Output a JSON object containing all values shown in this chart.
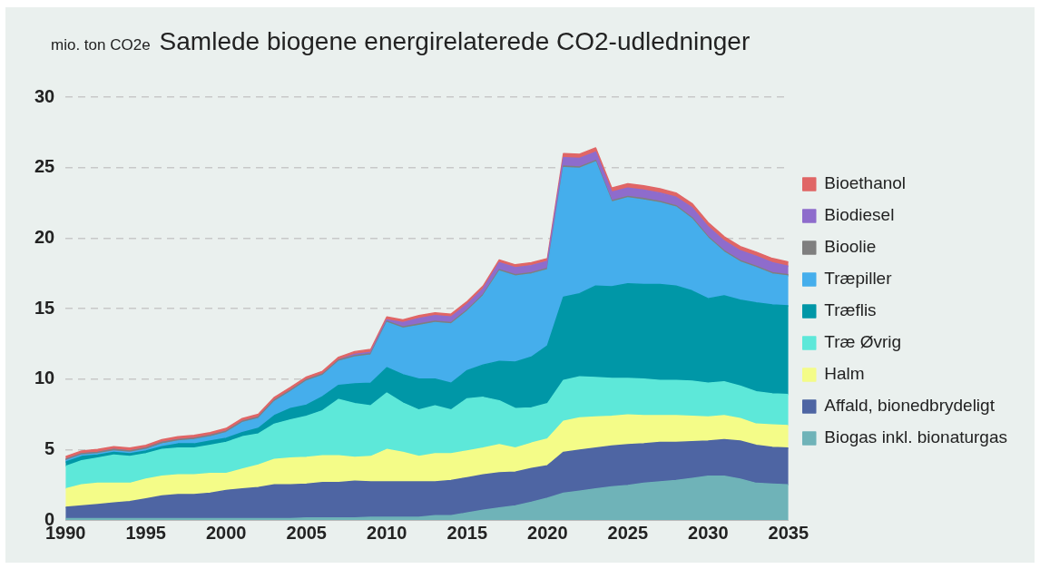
{
  "chart_data": {
    "type": "area",
    "stacked": true,
    "title": "Samlede biogene energirelaterede CO2-udledninger",
    "ylabel": "mio. ton CO2e",
    "x": [
      1990,
      1991,
      1992,
      1993,
      1994,
      1995,
      1996,
      1997,
      1998,
      1999,
      2000,
      2001,
      2002,
      2003,
      2004,
      2005,
      2006,
      2007,
      2008,
      2009,
      2010,
      2011,
      2012,
      2013,
      2014,
      2015,
      2016,
      2017,
      2018,
      2019,
      2020,
      2021,
      2022,
      2023,
      2024,
      2025,
      2026,
      2027,
      2028,
      2029,
      2030,
      2031,
      2032,
      2033,
      2034,
      2035
    ],
    "xlim": [
      1990,
      2035
    ],
    "xticks": [
      1990,
      1995,
      2000,
      2005,
      2010,
      2015,
      2020,
      2025,
      2030,
      2035
    ],
    "ylim": [
      0,
      30
    ],
    "yticks": [
      0,
      5,
      10,
      15,
      20,
      25,
      30
    ],
    "grid": "y",
    "legend": "right",
    "series": [
      {
        "name": "Biogas inkl. bionaturgas",
        "color": "#6fb3b8",
        "values": [
          0.1,
          0.1,
          0.1,
          0.1,
          0.1,
          0.1,
          0.1,
          0.1,
          0.1,
          0.1,
          0.1,
          0.1,
          0.1,
          0.1,
          0.1,
          0.15,
          0.15,
          0.15,
          0.15,
          0.2,
          0.2,
          0.2,
          0.2,
          0.3,
          0.3,
          0.5,
          0.7,
          0.85,
          1.0,
          1.25,
          1.55,
          1.9,
          2.05,
          2.2,
          2.35,
          2.45,
          2.6,
          2.7,
          2.8,
          2.95,
          3.1,
          3.1,
          2.9,
          2.6,
          2.55,
          2.5
        ]
      },
      {
        "name": "Affald, bionedbrydeligt",
        "color": "#4e65a3",
        "values": [
          0.8,
          0.9,
          1.0,
          1.1,
          1.2,
          1.4,
          1.6,
          1.7,
          1.7,
          1.8,
          2.0,
          2.1,
          2.2,
          2.4,
          2.4,
          2.4,
          2.5,
          2.5,
          2.6,
          2.5,
          2.5,
          2.5,
          2.5,
          2.4,
          2.5,
          2.5,
          2.5,
          2.5,
          2.4,
          2.4,
          2.3,
          2.9,
          2.9,
          2.9,
          2.9,
          2.9,
          2.8,
          2.8,
          2.7,
          2.6,
          2.5,
          2.6,
          2.7,
          2.7,
          2.6,
          2.6
        ]
      },
      {
        "name": "Halm",
        "color": "#f4fc88",
        "values": [
          1.3,
          1.5,
          1.5,
          1.4,
          1.3,
          1.4,
          1.4,
          1.4,
          1.4,
          1.4,
          1.2,
          1.4,
          1.6,
          1.8,
          1.9,
          1.9,
          1.9,
          1.9,
          1.7,
          1.8,
          2.3,
          2.1,
          1.8,
          2.0,
          1.9,
          1.9,
          1.9,
          2.0,
          1.7,
          1.8,
          1.9,
          2.2,
          2.3,
          2.2,
          2.1,
          2.1,
          2.0,
          1.9,
          1.9,
          1.8,
          1.7,
          1.7,
          1.6,
          1.5,
          1.6,
          1.6
        ]
      },
      {
        "name": "Træ Øvrig",
        "color": "#5de8d9",
        "values": [
          1.6,
          1.7,
          1.8,
          2.0,
          1.9,
          1.8,
          1.9,
          1.9,
          1.9,
          2.0,
          2.2,
          2.3,
          2.2,
          2.5,
          2.7,
          2.9,
          3.2,
          4.0,
          3.8,
          3.6,
          4.0,
          3.5,
          3.3,
          3.4,
          3.1,
          3.7,
          3.6,
          3.1,
          2.8,
          2.5,
          2.5,
          2.9,
          2.9,
          2.8,
          2.7,
          2.6,
          2.6,
          2.5,
          2.5,
          2.5,
          2.4,
          2.4,
          2.3,
          2.3,
          2.2,
          2.2
        ]
      },
      {
        "name": "Træflis",
        "color": "#0097a7",
        "values": [
          0.3,
          0.3,
          0.2,
          0.2,
          0.2,
          0.2,
          0.2,
          0.3,
          0.3,
          0.3,
          0.3,
          0.3,
          0.4,
          0.6,
          0.8,
          0.8,
          1.0,
          1.0,
          1.4,
          1.6,
          1.8,
          2.0,
          2.2,
          1.9,
          1.9,
          2.0,
          2.3,
          2.8,
          3.3,
          3.6,
          4.1,
          5.9,
          5.9,
          6.5,
          6.5,
          6.7,
          6.7,
          6.8,
          6.7,
          6.4,
          6.0,
          6.1,
          6.1,
          6.3,
          6.3,
          6.3
        ]
      },
      {
        "name": "Træpiller",
        "color": "#45aeec",
        "values": [
          0.1,
          0.1,
          0.1,
          0.1,
          0.1,
          0.1,
          0.2,
          0.2,
          0.3,
          0.3,
          0.4,
          0.7,
          0.7,
          1.0,
          1.2,
          1.7,
          1.5,
          1.7,
          1.9,
          2.0,
          3.2,
          3.3,
          3.8,
          4.0,
          4.2,
          4.2,
          4.9,
          6.4,
          6.1,
          5.9,
          5.4,
          9.2,
          8.9,
          8.8,
          6.0,
          6.1,
          6.0,
          5.8,
          5.6,
          5.1,
          4.3,
          3.1,
          2.7,
          2.5,
          2.2,
          2.1
        ]
      },
      {
        "name": "Bioolie",
        "color": "#7f7f7f",
        "values": [
          0.1,
          0.1,
          0.1,
          0.1,
          0.1,
          0.1,
          0.1,
          0.1,
          0.1,
          0.1,
          0.1,
          0.1,
          0.1,
          0.1,
          0.1,
          0.1,
          0.1,
          0.1,
          0.1,
          0.1,
          0.1,
          0.1,
          0.1,
          0.1,
          0.1,
          0.1,
          0.1,
          0.1,
          0.1,
          0.1,
          0.1,
          0.1,
          0.1,
          0.1,
          0.1,
          0.1,
          0.1,
          0.1,
          0.1,
          0.1,
          0.1,
          0.1,
          0.1,
          0.1,
          0.1,
          0.1
        ]
      },
      {
        "name": "Biodiesel",
        "color": "#8e6ccc",
        "values": [
          0,
          0,
          0,
          0,
          0,
          0,
          0,
          0,
          0,
          0,
          0,
          0,
          0,
          0,
          0,
          0,
          0,
          0,
          0.1,
          0.1,
          0.1,
          0.3,
          0.4,
          0.4,
          0.4,
          0.4,
          0.4,
          0.5,
          0.5,
          0.5,
          0.5,
          0.6,
          0.6,
          0.6,
          0.6,
          0.6,
          0.6,
          0.6,
          0.6,
          0.7,
          0.7,
          0.7,
          0.7,
          0.7,
          0.7,
          0.6
        ]
      },
      {
        "name": "Bioethanol",
        "color": "#e06666",
        "values": [
          0.2,
          0.2,
          0.2,
          0.2,
          0.2,
          0.2,
          0.2,
          0.2,
          0.2,
          0.2,
          0.2,
          0.2,
          0.2,
          0.2,
          0.2,
          0.2,
          0.2,
          0.2,
          0.2,
          0.2,
          0.2,
          0.2,
          0.2,
          0.2,
          0.2,
          0.2,
          0.2,
          0.2,
          0.2,
          0.2,
          0.2,
          0.3,
          0.3,
          0.3,
          0.3,
          0.3,
          0.3,
          0.3,
          0.3,
          0.3,
          0.3,
          0.3,
          0.3,
          0.3,
          0.3,
          0.3
        ]
      }
    ]
  }
}
